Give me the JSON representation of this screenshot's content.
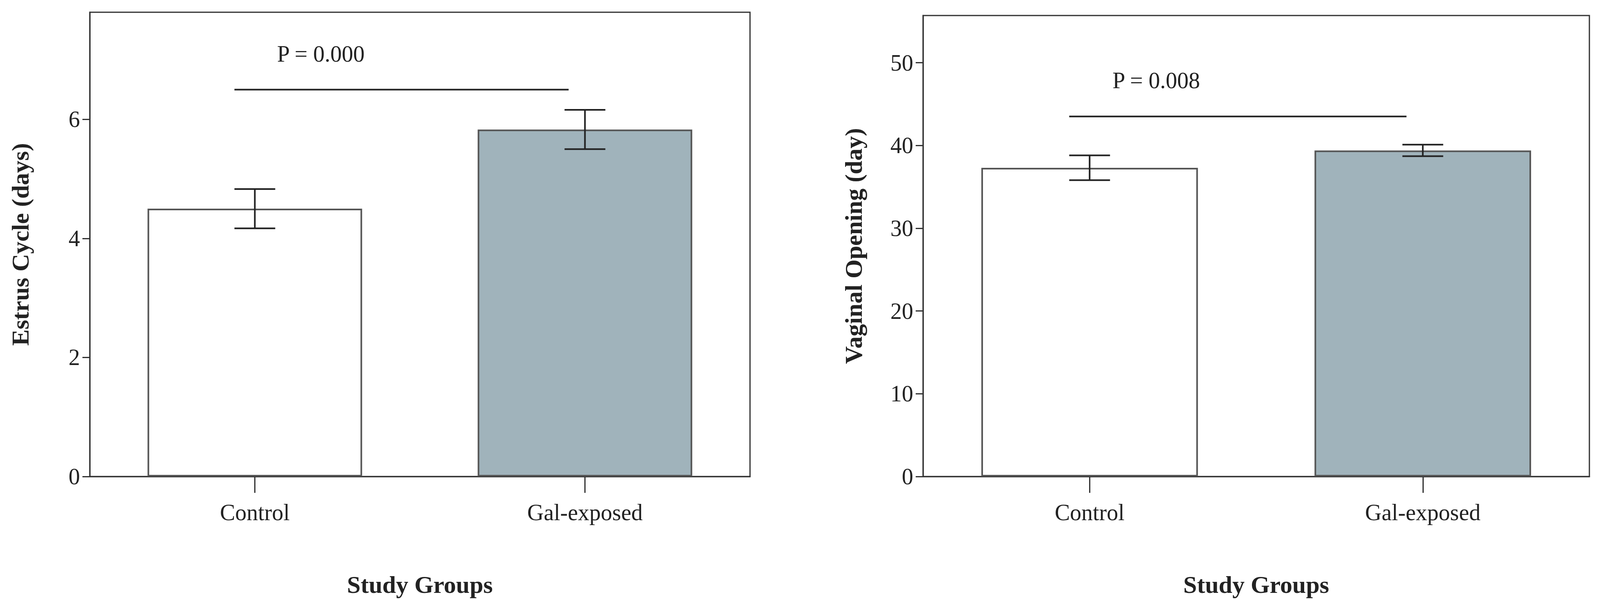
{
  "chart_data": [
    {
      "type": "bar",
      "x_label": "Study Groups",
      "y_label": "Estrus Cycle (days)",
      "categories": [
        "Control",
        "Gal-exposed"
      ],
      "values": [
        4.5,
        5.83
      ],
      "errors": [
        0.33,
        0.33
      ],
      "colors": [
        "#ffffff",
        "#a0b3bb"
      ],
      "ylim": [
        0,
        7.8
      ],
      "yticks": [
        0,
        2,
        4,
        6
      ],
      "grid": false,
      "annotation": {
        "text": "P = 0.000",
        "y": 6.5
      }
    },
    {
      "type": "bar",
      "x_label": "Study Groups",
      "y_label": "Vaginal Opening (day)",
      "categories": [
        "Control",
        "Gal-exposed"
      ],
      "values": [
        37.3,
        39.4
      ],
      "errors": [
        1.5,
        0.7
      ],
      "colors": [
        "#ffffff",
        "#a0b3bb"
      ],
      "ylim": [
        0,
        55.7
      ],
      "yticks": [
        0,
        10,
        20,
        30,
        40,
        50
      ],
      "grid": false,
      "annotation": {
        "text": "P = 0.008",
        "y": 43.5
      }
    }
  ]
}
